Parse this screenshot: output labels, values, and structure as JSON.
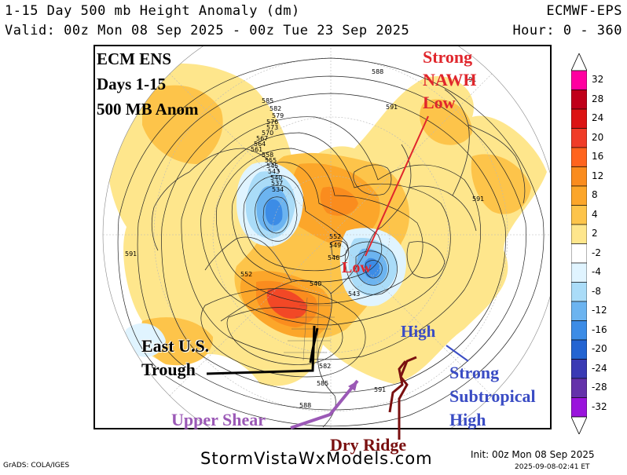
{
  "header": {
    "title": "1-15 Day 500 mb Height Anomaly (dm)",
    "model": "ECMWF-EPS",
    "valid": "Valid: 00z Mon 08 Sep 2025 - 00z Tue 23 Sep 2025",
    "hours": "Hour: 0 - 360"
  },
  "legend": {
    "labels": [
      "32",
      "28",
      "24",
      "20",
      "16",
      "12",
      "8",
      "4",
      "2",
      "-2",
      "-4",
      "-8",
      "-12",
      "-16",
      "-20",
      "-24",
      "-28",
      "-32"
    ],
    "colors": [
      "#ff00a0",
      "#c0001a",
      "#dc1414",
      "#f03c28",
      "#ff641e",
      "#fa8c1e",
      "#fca62a",
      "#fdc44a",
      "#fee68c",
      "#ffffff",
      "#e0f4ff",
      "#aadcf8",
      "#6cb4f0",
      "#3c8ce6",
      "#2364d2",
      "#3a3ab4",
      "#6432aa",
      "#9a14dc"
    ]
  },
  "annotations": {
    "ecm_line1": "ECM ENS",
    "ecm_line2": "Days 1-15",
    "ecm_line3": "500 MB Anom",
    "nawh_line1": "Strong",
    "nawh_line2": "NAWH",
    "nawh_line3": "Low",
    "low": "Low",
    "high": "High",
    "subtrop_line1": "Strong",
    "subtrop_line2": "Subtropical",
    "subtrop_line3": "High",
    "trough_line1": "East U.S.",
    "trough_line2": "Trough",
    "upper_shear": "Upper Shear",
    "dry_ridge": "Dry Ridge"
  },
  "contour_labels": [
    "588",
    "585",
    "582",
    "579",
    "576",
    "573",
    "570",
    "567",
    "564",
    "561",
    "558",
    "555",
    "545",
    "543",
    "540",
    "537",
    "534",
    "591",
    "591",
    "591",
    "591",
    "552",
    "549",
    "546",
    "552",
    "540",
    "543",
    "588",
    "585",
    "591",
    "582"
  ],
  "footer": {
    "grads": "GrADS: COLA/IGES",
    "site": "StormVistaWxModels.com",
    "init": "Init: 00z Mon 08 Sep 2025",
    "generated": "2025-09-08-02:41 ET"
  },
  "colors": {
    "annotation_red": "#e0262c",
    "annotation_blue": "#3a4cc4",
    "annotation_purple": "#9b59b6",
    "annotation_darkred": "#7a1010"
  }
}
